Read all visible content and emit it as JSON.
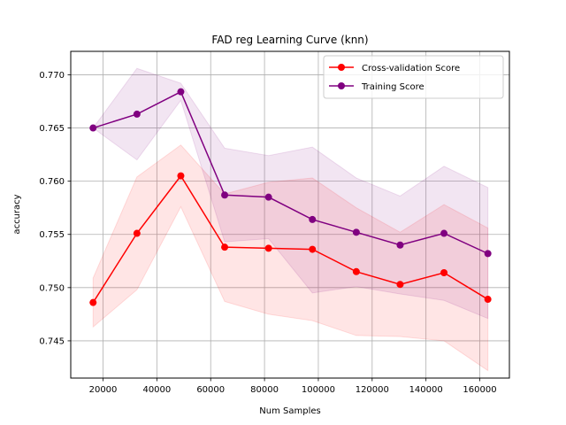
{
  "chart_data": {
    "type": "line",
    "title": "FAD reg Learning Curve (knn)",
    "xlabel": "Num Samples",
    "ylabel": "accuracy",
    "xlim": [
      8000,
      171000
    ],
    "ylim": [
      0.7415,
      0.7722
    ],
    "grid": true,
    "legend_position": "top-right",
    "x_ticks": [
      20000,
      40000,
      60000,
      80000,
      100000,
      120000,
      140000,
      160000
    ],
    "x_tick_labels": [
      "20000",
      "40000",
      "60000",
      "80000",
      "100000",
      "120000",
      "140000",
      "160000"
    ],
    "y_ticks": [
      0.745,
      0.75,
      0.755,
      0.76,
      0.765,
      0.77
    ],
    "y_tick_labels": [
      "0.745",
      "0.750",
      "0.755",
      "0.760",
      "0.765",
      "0.770"
    ],
    "x": [
      16300,
      32600,
      48900,
      65200,
      81500,
      97800,
      114100,
      130400,
      146700,
      163000
    ],
    "series": [
      {
        "name": "Cross-validation Score",
        "color": "#ff0000",
        "band_color": "#ff0000",
        "values": [
          0.7486,
          0.7551,
          0.7605,
          0.7538,
          0.7537,
          0.7536,
          0.7515,
          0.7503,
          0.7514,
          0.7489
        ],
        "upper": [
          0.7509,
          0.7604,
          0.7634,
          0.7588,
          0.7599,
          0.7603,
          0.7575,
          0.7552,
          0.7578,
          0.7556
        ],
        "lower": [
          0.7463,
          0.7498,
          0.7576,
          0.7487,
          0.7475,
          0.7469,
          0.7455,
          0.7454,
          0.745,
          0.7422
        ]
      },
      {
        "name": "Training Score",
        "color": "#800080",
        "band_color": "#800080",
        "values": [
          0.765,
          0.7663,
          0.7684,
          0.7587,
          0.7585,
          0.7564,
          0.7552,
          0.754,
          0.7551,
          0.7532
        ],
        "upper": [
          0.765,
          0.7706,
          0.7692,
          0.7631,
          0.7624,
          0.7632,
          0.7603,
          0.7586,
          0.7614,
          0.7594
        ],
        "lower": [
          0.765,
          0.762,
          0.7676,
          0.7543,
          0.7546,
          0.7495,
          0.7501,
          0.7494,
          0.7488,
          0.7471
        ]
      }
    ]
  }
}
